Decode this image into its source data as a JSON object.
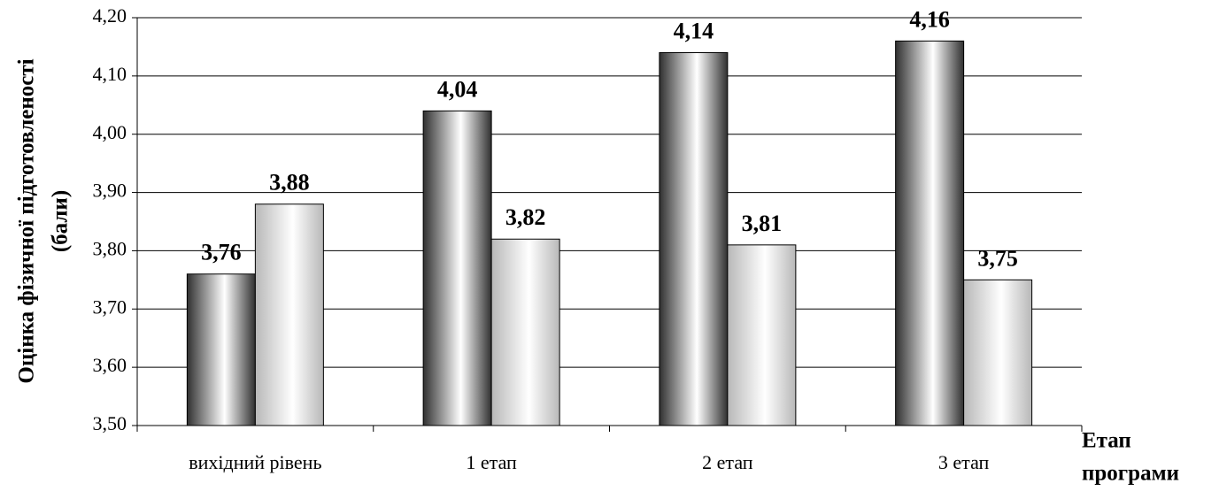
{
  "chart_data": {
    "type": "bar",
    "y_label": [
      "Оцінка фізичної підготовленості",
      "(бали)"
    ],
    "x_label": [
      "Етап",
      "програми"
    ],
    "categories": [
      "вихідний рівень",
      "1 етап",
      "2 етап",
      "3 етап"
    ],
    "series": [
      {
        "color": "#303030",
        "values": [
          3.76,
          4.04,
          4.14,
          4.16
        ],
        "value_labels": [
          "3,76",
          "4,04",
          "4,14",
          "4,16"
        ]
      },
      {
        "color": "#b8b8b8",
        "values": [
          3.88,
          3.82,
          3.81,
          3.75
        ],
        "value_labels": [
          "3,88",
          "3,82",
          "3,81",
          "3,75"
        ]
      }
    ],
    "ylim": [
      3.5,
      4.2
    ],
    "yticks": [
      {
        "value": 3.5,
        "label": "3,50"
      },
      {
        "value": 3.6,
        "label": "3,60"
      },
      {
        "value": 3.7,
        "label": "3,70"
      },
      {
        "value": 3.8,
        "label": "3,80"
      },
      {
        "value": 3.9,
        "label": "3,90"
      },
      {
        "value": 4.0,
        "label": "4,00"
      },
      {
        "value": 4.1,
        "label": "4,10"
      },
      {
        "value": 4.2,
        "label": "4,20"
      }
    ],
    "grid": true
  }
}
